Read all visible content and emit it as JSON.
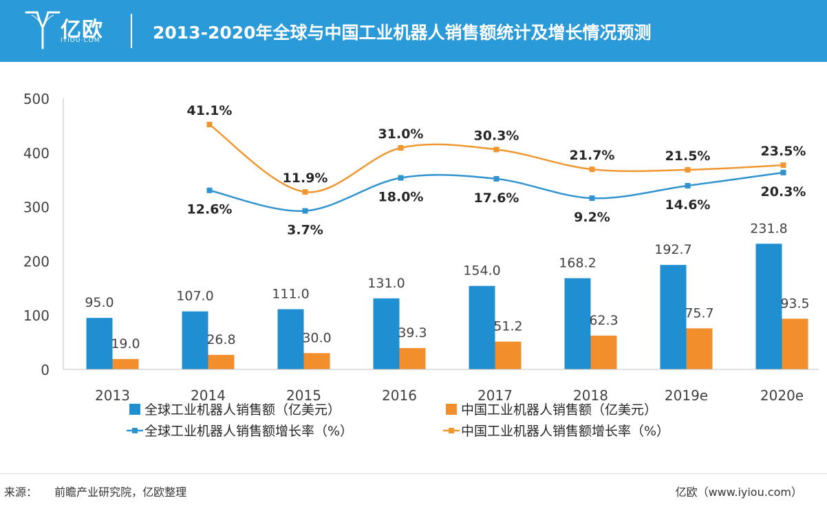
{
  "header": {
    "logo_text": "亿欧",
    "logo_sub": "IYIOU·COM",
    "title": "2013-2020年全球与中国工业机器人销售额统计及增长情况预测"
  },
  "colors": {
    "header_bg": "#2a9ad8",
    "global_bar": "#1f8fd2",
    "china_bar": "#f28e2b",
    "global_line": "#2f93d0",
    "china_line": "#f0962f"
  },
  "chart_data": {
    "type": "bar+line",
    "categories": [
      "2013",
      "2014",
      "2015",
      "2016",
      "2017",
      "2018",
      "2019e",
      "2020e"
    ],
    "y_ticks": [
      "0",
      "100",
      "200",
      "300",
      "400",
      "500"
    ],
    "ylim": [
      0,
      500
    ],
    "grid": false,
    "legend_position": "bottom",
    "series": [
      {
        "name": "全球工业机器人销售额（亿美元）",
        "kind": "bar",
        "values": [
          95.0,
          107.0,
          111.0,
          131.0,
          154.0,
          168.2,
          192.7,
          231.8
        ],
        "labels": [
          "95.0",
          "107.0",
          "111.0",
          "131.0",
          "154.0",
          "168.2",
          "192.7",
          "231.8"
        ]
      },
      {
        "name": "中国工业机器人销售额（亿美元）",
        "kind": "bar",
        "values": [
          19.0,
          26.8,
          30.0,
          39.3,
          51.2,
          62.3,
          75.7,
          93.5
        ],
        "labels": [
          "19.0",
          "26.8",
          "30.0",
          "39.3",
          "51.2",
          "62.3",
          "75.7",
          "93.5"
        ]
      },
      {
        "name": "全球工业机器人销售额增长率（%）",
        "kind": "line",
        "values": [
          null,
          12.6,
          3.7,
          18.0,
          17.6,
          9.2,
          14.6,
          20.3
        ],
        "labels": [
          "",
          "12.6%",
          "3.7%",
          "18.0%",
          "17.6%",
          "9.2%",
          "14.6%",
          "20.3%"
        ]
      },
      {
        "name": "中国工业机器人销售额增长率（%）",
        "kind": "line",
        "values": [
          null,
          41.1,
          11.9,
          31.0,
          30.3,
          21.7,
          21.5,
          23.5
        ],
        "labels": [
          "",
          "41.1%",
          "11.9%",
          "31.0%",
          "30.3%",
          "21.7%",
          "21.5%",
          "23.5%"
        ]
      }
    ]
  },
  "footer": {
    "source_label": "来源：",
    "source_text": "前瞻产业研究院，亿欧整理",
    "site": "亿欧（www.iyiou.com）"
  }
}
